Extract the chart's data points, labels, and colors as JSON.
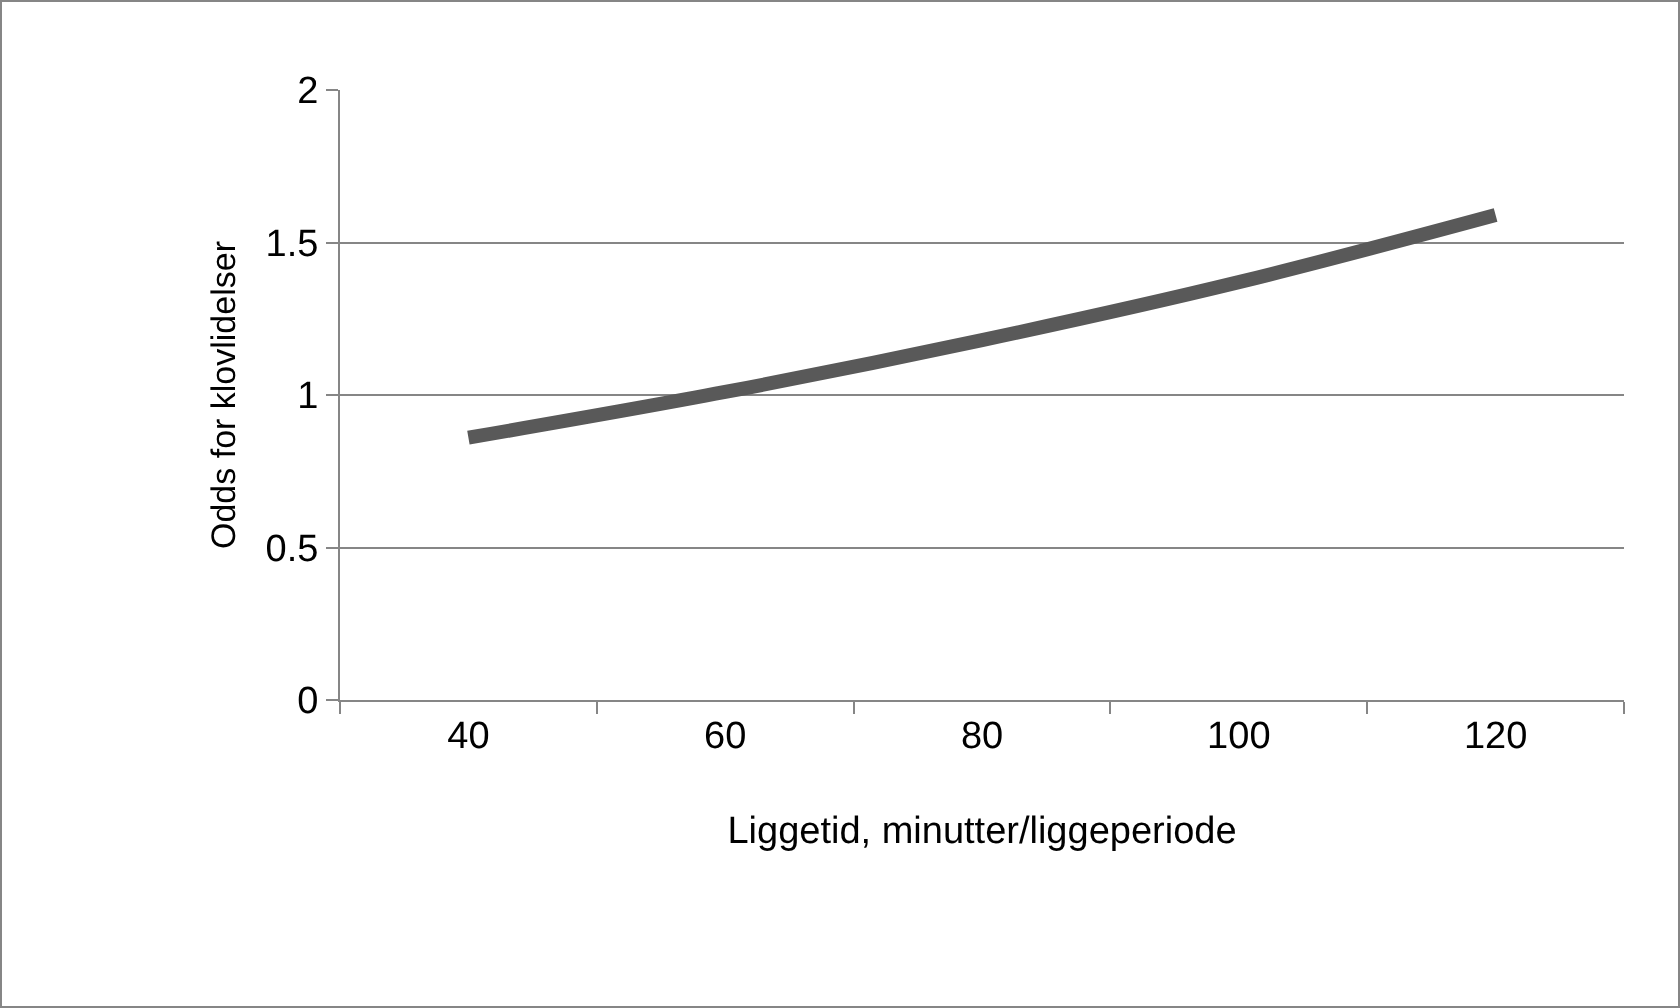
{
  "chart_data": {
    "type": "line",
    "xlabel": "Liggetid, minutter/liggeperiode",
    "ylabel": "Odds for klovlidelser",
    "categories": [
      "40",
      "60",
      "80",
      "100",
      "120"
    ],
    "series": [
      {
        "color": "#595959",
        "values": [
          0.86,
          1.01,
          1.18,
          1.37,
          1.59
        ]
      }
    ],
    "ylim": [
      0,
      2
    ],
    "yticks": [
      0,
      0.5,
      1,
      1.5,
      2
    ],
    "grid": "y",
    "marker": "none",
    "line_style": "solid"
  }
}
